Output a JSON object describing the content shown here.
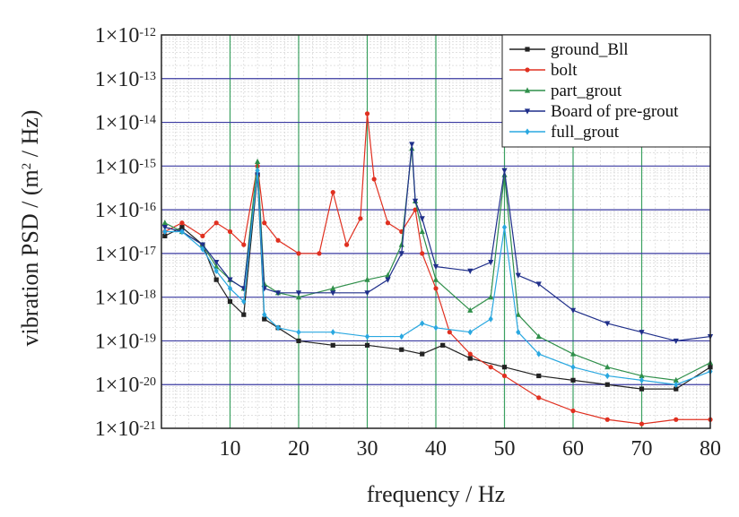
{
  "chart_data": {
    "type": "line",
    "xlabel": "frequency / Hz",
    "ylabel_parts": {
      "prefix": "vibration PSD / (m",
      "sup": "2",
      "suffix": " / Hz)"
    },
    "xlim": [
      0,
      80
    ],
    "ylim_exponents": [
      -21,
      -12
    ],
    "y_scale": "log",
    "x_ticks": [
      10,
      20,
      30,
      40,
      50,
      60,
      70,
      80
    ],
    "y_tick_labels": [
      "1×10",
      "1×10",
      "1×10",
      "1×10",
      "1×10",
      "1×10",
      "1×10",
      "1×10",
      "1×10",
      "1×10"
    ],
    "y_tick_exponents": [
      "-21",
      "-20",
      "-19",
      "-18",
      "-17",
      "-16",
      "-15",
      "-14",
      "-13",
      "-12"
    ],
    "grid": true,
    "legend_position": "top-right",
    "series": [
      {
        "name": "ground_Bll",
        "color": "#222222",
        "marker": "square",
        "points": [
          [
            0.5,
            -16.6
          ],
          [
            3,
            -16.4
          ],
          [
            6,
            -16.8
          ],
          [
            8,
            -17.6
          ],
          [
            10,
            -18.1
          ],
          [
            12,
            -18.4
          ],
          [
            14,
            -15.2
          ],
          [
            15,
            -18.5
          ],
          [
            17,
            -18.7
          ],
          [
            20,
            -19.0
          ],
          [
            25,
            -19.1
          ],
          [
            30,
            -19.1
          ],
          [
            35,
            -19.2
          ],
          [
            38,
            -19.3
          ],
          [
            41,
            -19.1
          ],
          [
            45,
            -19.4
          ],
          [
            50,
            -19.6
          ],
          [
            55,
            -19.8
          ],
          [
            60,
            -19.9
          ],
          [
            65,
            -20.0
          ],
          [
            70,
            -20.1
          ],
          [
            75,
            -20.1
          ],
          [
            80,
            -19.6
          ]
        ]
      },
      {
        "name": "bolt",
        "color": "#e03020",
        "marker": "circle",
        "points": [
          [
            0.5,
            -16.5
          ],
          [
            3,
            -16.3
          ],
          [
            6,
            -16.6
          ],
          [
            8,
            -16.3
          ],
          [
            10,
            -16.5
          ],
          [
            12,
            -16.8
          ],
          [
            14,
            -15.0
          ],
          [
            15,
            -16.3
          ],
          [
            17,
            -16.7
          ],
          [
            20,
            -17.0
          ],
          [
            23,
            -17.0
          ],
          [
            25,
            -15.6
          ],
          [
            27,
            -16.8
          ],
          [
            29,
            -16.2
          ],
          [
            30,
            -13.8
          ],
          [
            31,
            -15.3
          ],
          [
            33,
            -16.3
          ],
          [
            35,
            -16.5
          ],
          [
            37,
            -16.0
          ],
          [
            38,
            -17.0
          ],
          [
            40,
            -17.8
          ],
          [
            42,
            -18.8
          ],
          [
            45,
            -19.3
          ],
          [
            48,
            -19.6
          ],
          [
            50,
            -19.8
          ],
          [
            55,
            -20.3
          ],
          [
            60,
            -20.6
          ],
          [
            65,
            -20.8
          ],
          [
            70,
            -20.9
          ],
          [
            75,
            -20.8
          ],
          [
            80,
            -20.8
          ]
        ]
      },
      {
        "name": "part_grout",
        "color": "#2f8f4a",
        "marker": "triangle-up",
        "points": [
          [
            0.5,
            -16.3
          ],
          [
            3,
            -16.5
          ],
          [
            6,
            -16.8
          ],
          [
            8,
            -17.3
          ],
          [
            10,
            -17.6
          ],
          [
            12,
            -17.8
          ],
          [
            14,
            -14.9
          ],
          [
            15,
            -17.7
          ],
          [
            17,
            -17.9
          ],
          [
            20,
            -18.0
          ],
          [
            25,
            -17.8
          ],
          [
            30,
            -17.6
          ],
          [
            33,
            -17.5
          ],
          [
            35,
            -16.8
          ],
          [
            36.5,
            -14.6
          ],
          [
            37,
            -15.8
          ],
          [
            38,
            -16.5
          ],
          [
            40,
            -17.6
          ],
          [
            45,
            -18.3
          ],
          [
            48,
            -18.0
          ],
          [
            50,
            -15.2
          ],
          [
            52,
            -18.4
          ],
          [
            55,
            -18.9
          ],
          [
            60,
            -19.3
          ],
          [
            65,
            -19.6
          ],
          [
            70,
            -19.8
          ],
          [
            75,
            -19.9
          ],
          [
            80,
            -19.5
          ]
        ]
      },
      {
        "name": "Board of pre-grout",
        "color": "#1f2f8a",
        "marker": "triangle-down",
        "points": [
          [
            0.5,
            -16.4
          ],
          [
            3,
            -16.5
          ],
          [
            6,
            -16.8
          ],
          [
            8,
            -17.2
          ],
          [
            10,
            -17.6
          ],
          [
            12,
            -17.8
          ],
          [
            14,
            -15.2
          ],
          [
            15,
            -17.8
          ],
          [
            17,
            -17.9
          ],
          [
            20,
            -17.9
          ],
          [
            25,
            -17.9
          ],
          [
            30,
            -17.9
          ],
          [
            33,
            -17.6
          ],
          [
            35,
            -17.0
          ],
          [
            36.5,
            -14.5
          ],
          [
            37,
            -15.8
          ],
          [
            38,
            -16.2
          ],
          [
            40,
            -17.3
          ],
          [
            45,
            -17.4
          ],
          [
            48,
            -17.2
          ],
          [
            50,
            -15.1
          ],
          [
            52,
            -17.5
          ],
          [
            55,
            -17.7
          ],
          [
            60,
            -18.3
          ],
          [
            65,
            -18.6
          ],
          [
            70,
            -18.8
          ],
          [
            75,
            -19.0
          ],
          [
            80,
            -18.9
          ]
        ]
      },
      {
        "name": "full_grout",
        "color": "#2aa8e0",
        "marker": "diamond",
        "points": [
          [
            0.5,
            -16.5
          ],
          [
            3,
            -16.5
          ],
          [
            6,
            -16.9
          ],
          [
            8,
            -17.4
          ],
          [
            10,
            -17.8
          ],
          [
            12,
            -18.1
          ],
          [
            14,
            -15.1
          ],
          [
            15,
            -18.4
          ],
          [
            17,
            -18.7
          ],
          [
            20,
            -18.8
          ],
          [
            25,
            -18.8
          ],
          [
            30,
            -18.9
          ],
          [
            35,
            -18.9
          ],
          [
            38,
            -18.6
          ],
          [
            40,
            -18.7
          ],
          [
            45,
            -18.8
          ],
          [
            48,
            -18.5
          ],
          [
            50,
            -16.4
          ],
          [
            52,
            -18.8
          ],
          [
            55,
            -19.3
          ],
          [
            60,
            -19.6
          ],
          [
            65,
            -19.8
          ],
          [
            70,
            -19.9
          ],
          [
            75,
            -20.0
          ],
          [
            80,
            -19.7
          ]
        ]
      }
    ]
  }
}
